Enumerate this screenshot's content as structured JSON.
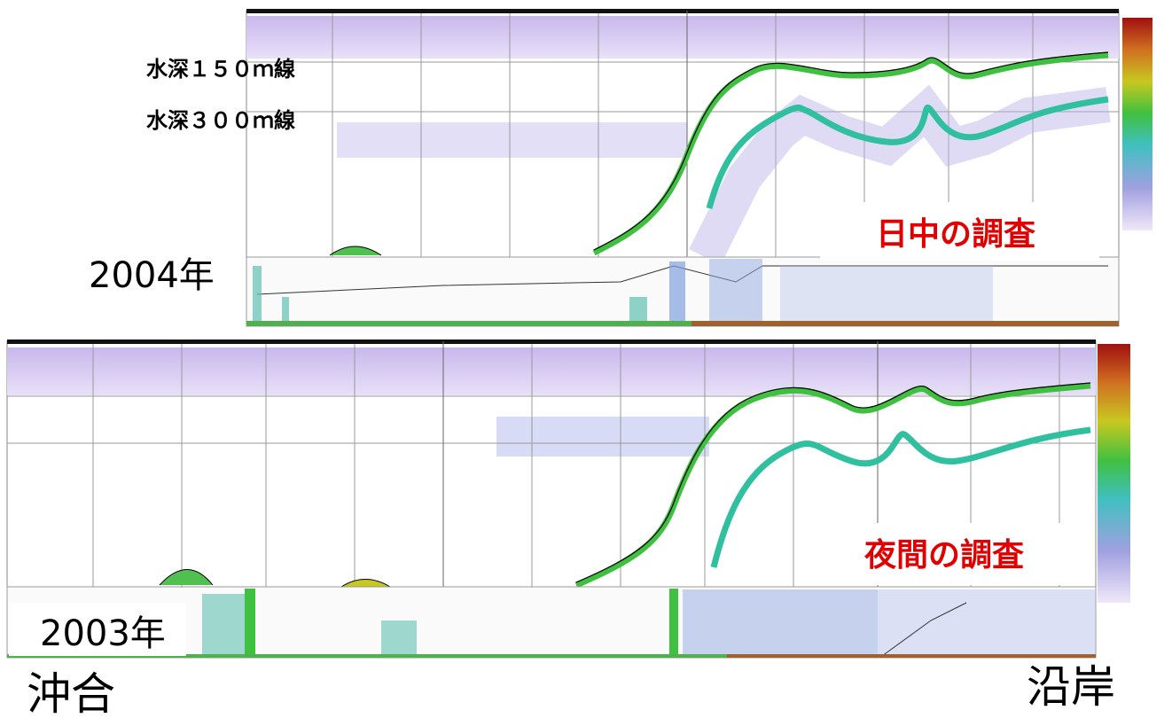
{
  "labels": {
    "depth_150": "水深１５０ｍ線",
    "depth_300": "水深３００ｍ線"
  },
  "panels": [
    {
      "year": "2004年",
      "caption": "日中の調査"
    },
    {
      "year": "2003年",
      "caption": "夜間の調査"
    }
  ],
  "direction": {
    "offshore": "沖合",
    "coastal": "沿岸"
  }
}
